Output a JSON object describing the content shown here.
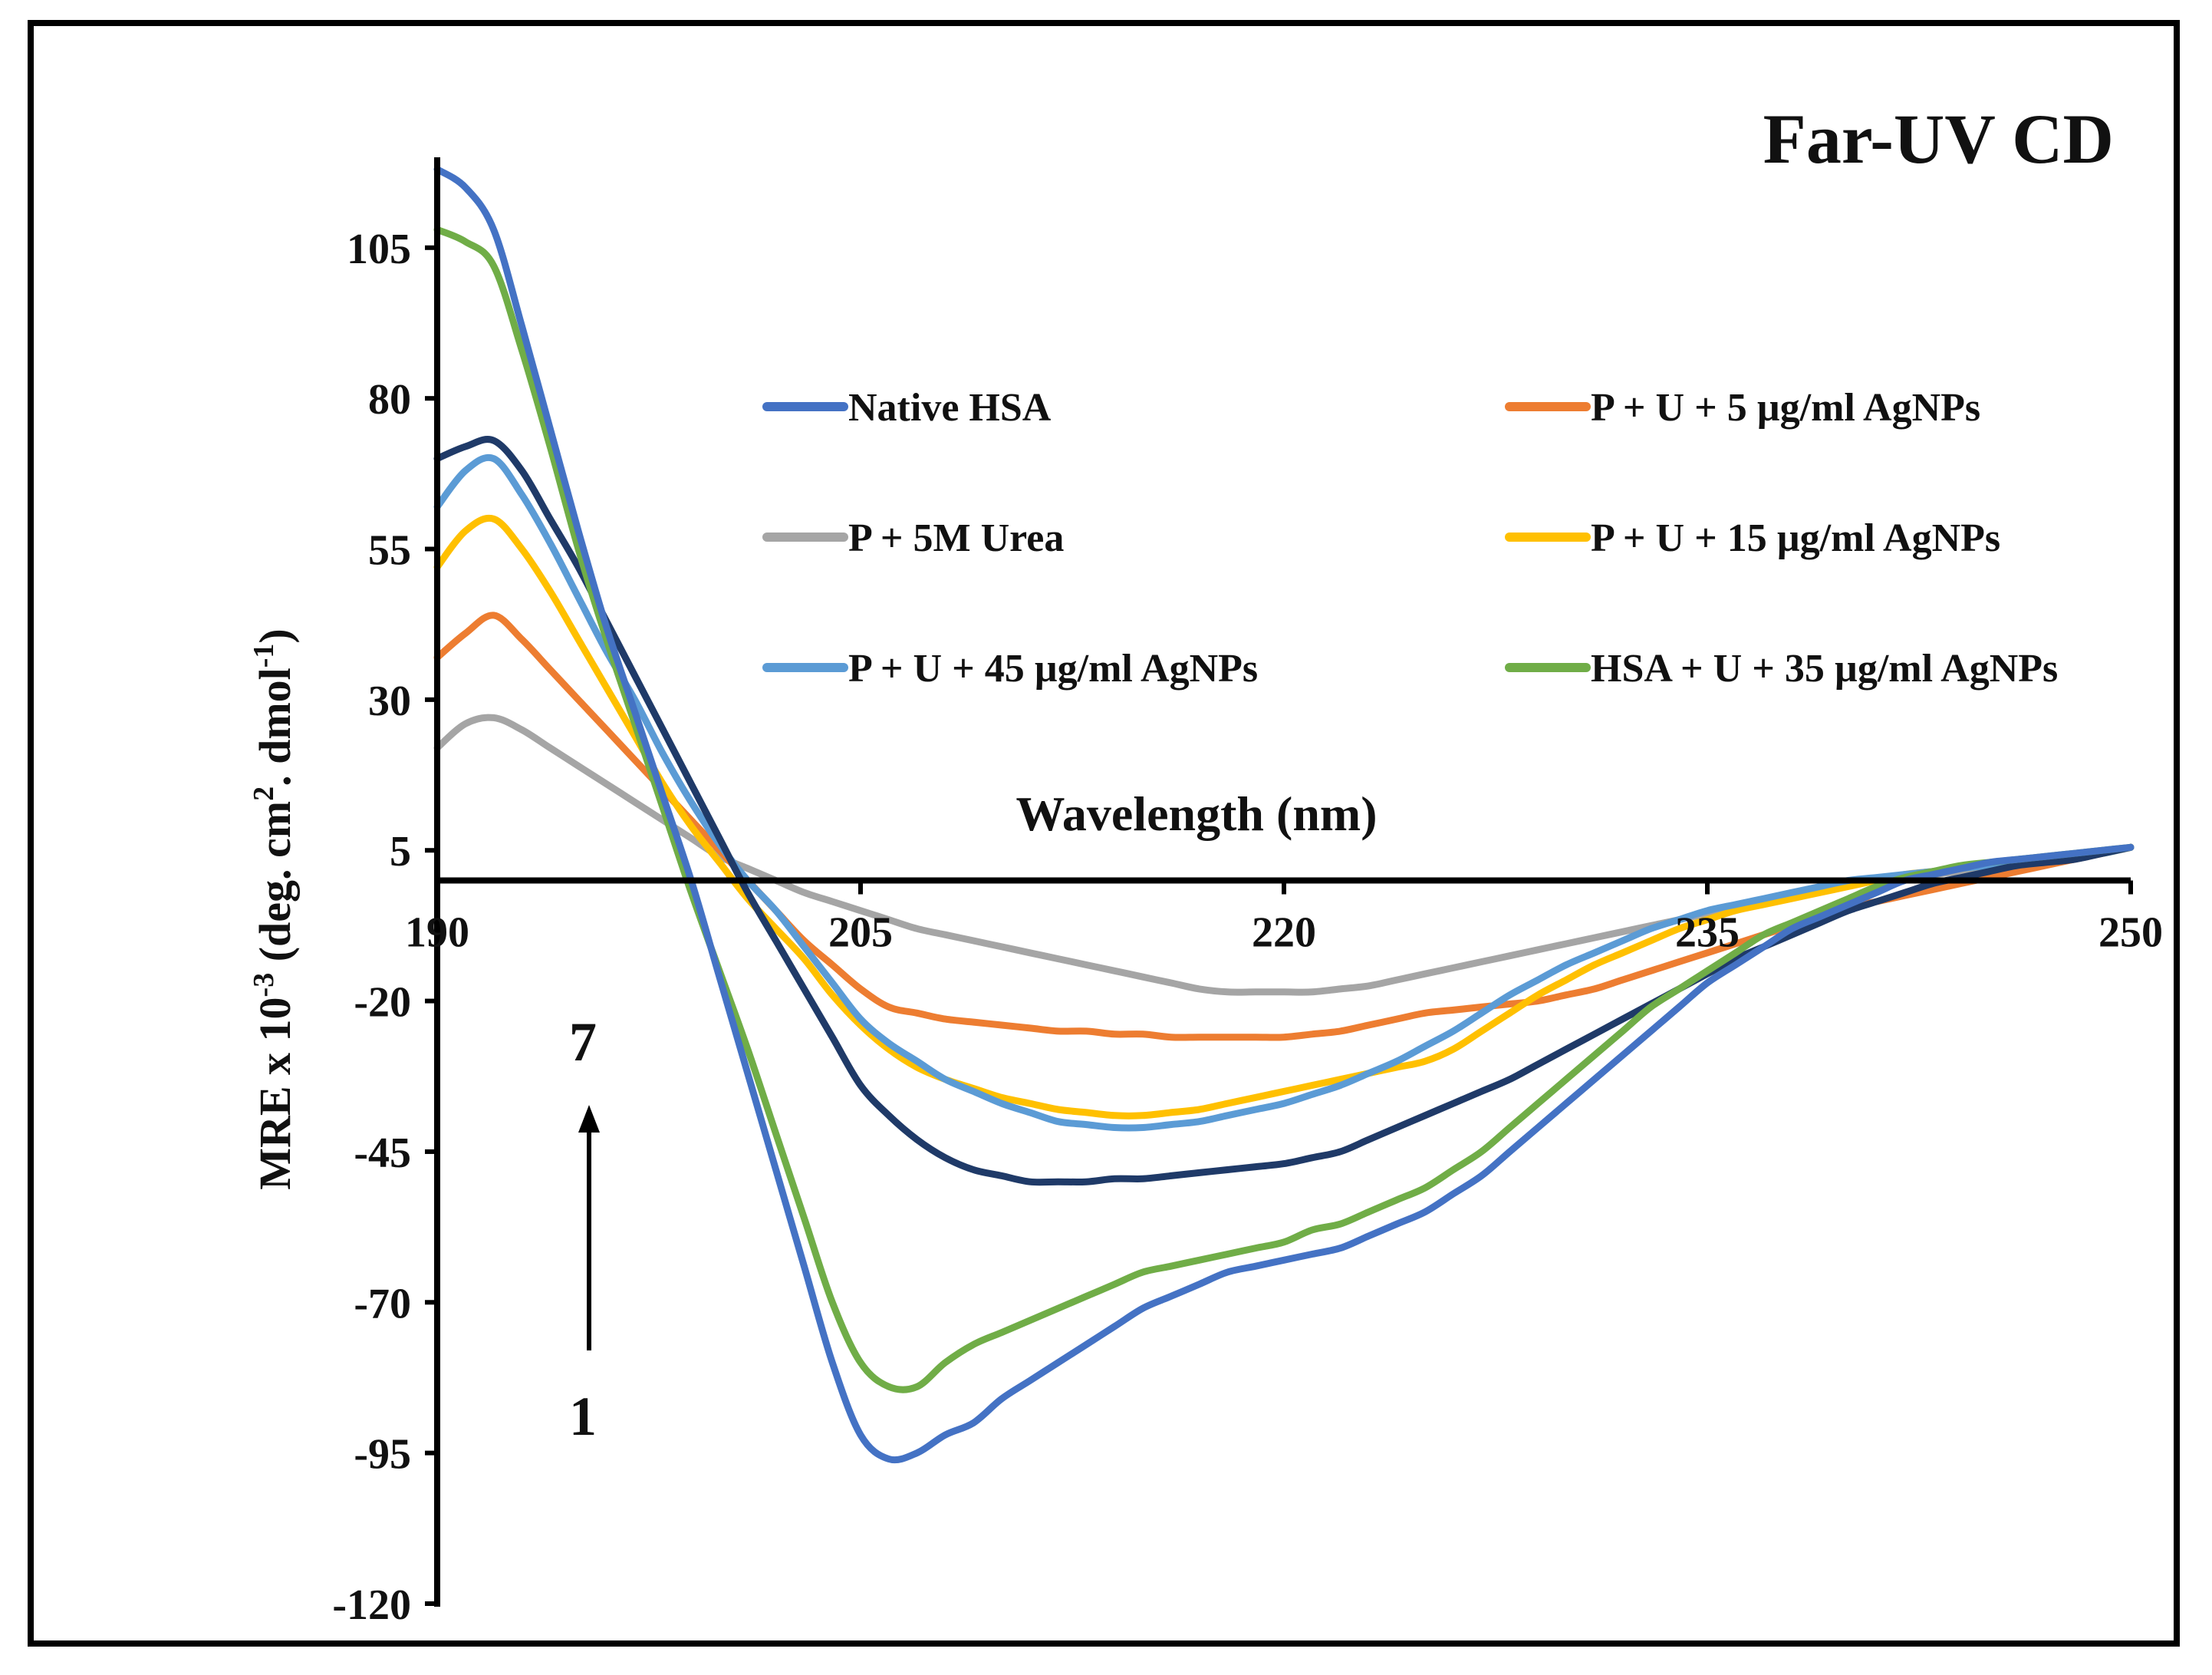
{
  "chart_data": {
    "type": "line",
    "title": "Far-UV CD",
    "xlabel": "Wavelength (nm)",
    "ylabel": "MRE x 10",
    "ylabel_exp": "-3",
    "ylabel_mid": " (deg. cm",
    "ylabel_exp2": "2",
    "ylabel_tail": ". dmol",
    "ylabel_exp3": "-1",
    "ylabel_close": ")",
    "xlim": [
      190,
      250
    ],
    "ylim": [
      -120,
      120
    ],
    "x_ticks": [
      "190",
      "205",
      "220",
      "235",
      "250"
    ],
    "y_ticks": [
      "105",
      "80",
      "55",
      "30",
      "5",
      "-20",
      "-45",
      "-70",
      "-95",
      "-120"
    ],
    "annotation_top": "7",
    "annotation_bottom": "1",
    "x": [
      190,
      191,
      192,
      193,
      194,
      195,
      196,
      197,
      198,
      199,
      200,
      201,
      202,
      203,
      204,
      205,
      206,
      207,
      208,
      209,
      210,
      211,
      212,
      213,
      214,
      215,
      216,
      217,
      218,
      219,
      220,
      221,
      222,
      223,
      224,
      225,
      226,
      227,
      228,
      229,
      230,
      231,
      232,
      233,
      234,
      235,
      236,
      237,
      238,
      239,
      240,
      241,
      242,
      243,
      244,
      245,
      246,
      247,
      248,
      249,
      250
    ],
    "series": [
      {
        "name": "Native HSA",
        "color": "#4472C4",
        "values": [
          118,
          115,
          108,
          92,
          75,
          58,
          42,
          28,
          14,
          0,
          -16,
          -32,
          -48,
          -64,
          -80,
          -92,
          -96,
          -95,
          -92,
          -90,
          -86,
          -83,
          -80,
          -77,
          -74,
          -71,
          -69,
          -67,
          -65,
          -64,
          -63,
          -62,
          -61,
          -59,
          -57,
          -55,
          -52,
          -49,
          -45,
          -41,
          -37,
          -33,
          -29,
          -25,
          -21,
          -17,
          -14,
          -11,
          -8,
          -6,
          -4,
          -2,
          0,
          1,
          2,
          3,
          3.5,
          4,
          4.5,
          5,
          5.5
        ]
      },
      {
        "name": "P + U + 5 µg/ml AgNPs",
        "color": "#ED7D31",
        "values": [
          37,
          41,
          44,
          40,
          35,
          30,
          25,
          20,
          15,
          10,
          5,
          0,
          -5,
          -10,
          -14,
          -18,
          -21,
          -22,
          -23,
          -23.5,
          -24,
          -24.5,
          -25,
          -25,
          -25.5,
          -25.5,
          -26,
          -26,
          -26,
          -26,
          -26,
          -25.5,
          -25,
          -24,
          -23,
          -22,
          -21.5,
          -21,
          -20.5,
          -20,
          -19,
          -18,
          -16.5,
          -15,
          -13.5,
          -12,
          -10.5,
          -9,
          -7.5,
          -6,
          -4.5,
          -3.5,
          -2.5,
          -1.5,
          -0.5,
          0.5,
          1.5,
          2.5,
          3.5,
          4.5,
          5.5
        ]
      },
      {
        "name": "P + 5M Urea",
        "color": "#A5A5A5",
        "values": [
          22,
          26,
          27,
          25,
          22,
          19,
          16,
          13,
          10,
          7,
          4,
          2,
          0,
          -2,
          -3.5,
          -5,
          -6.5,
          -8,
          -9,
          -10,
          -11,
          -12,
          -13,
          -14,
          -15,
          -16,
          -17,
          -18,
          -18.5,
          -18.5,
          -18.5,
          -18.5,
          -18,
          -17.5,
          -16.5,
          -15.5,
          -14.5,
          -13.5,
          -12.5,
          -11.5,
          -10.5,
          -9.5,
          -8.5,
          -7.5,
          -6.5,
          -5.5,
          -4.5,
          -3.5,
          -2.5,
          -1.5,
          -0.5,
          0,
          0.5,
          1,
          1.5,
          2,
          2.5,
          3,
          3.5,
          4.5,
          5.5
        ]
      },
      {
        "name": "P + U + 15 µg/ml AgNPs",
        "color": "#FFC000",
        "values": [
          52,
          58,
          60,
          55,
          48,
          40,
          32,
          24,
          16,
          9,
          3,
          -3,
          -8,
          -13,
          -19,
          -24,
          -28,
          -31,
          -33,
          -34.5,
          -36,
          -37,
          -38,
          -38.5,
          -39,
          -39,
          -38.5,
          -38,
          -37,
          -36,
          -35,
          -34,
          -33,
          -32,
          -31,
          -30,
          -28,
          -25,
          -22,
          -19,
          -16.5,
          -14,
          -12,
          -10,
          -8,
          -6.5,
          -5,
          -4,
          -3,
          -2,
          -1,
          0,
          1,
          1.5,
          2,
          2.5,
          3,
          3.5,
          4,
          4.5,
          5.5
        ]
      },
      {
        "name": "P + U + 45 µg/ml AgNPs",
        "color": "#5B9BD5",
        "values": [
          62,
          68,
          70,
          64,
          56,
          47,
          38,
          30,
          21,
          13,
          6,
          0,
          -5,
          -11,
          -17,
          -23,
          -27,
          -30,
          -33,
          -35,
          -37,
          -38.5,
          -40,
          -40.5,
          -41,
          -41,
          -40.5,
          -40,
          -39,
          -38,
          -37,
          -35.5,
          -34,
          -32,
          -30,
          -27.5,
          -25,
          -22,
          -19,
          -16.5,
          -14,
          -12,
          -10,
          -8,
          -6.5,
          -5,
          -4,
          -3,
          -2,
          -1,
          0,
          0.5,
          1,
          1.5,
          2,
          2.5,
          3,
          3.5,
          4,
          4.5,
          5.5
        ]
      },
      {
        "name": "HSA + U + 35 µg/ml AgNPs",
        "color": "#70AD47",
        "values": [
          108,
          106,
          102,
          88,
          72,
          55,
          40,
          26,
          12,
          -2,
          -15,
          -28,
          -42,
          -56,
          -70,
          -80,
          -84,
          -84,
          -80,
          -77,
          -75,
          -73,
          -71,
          -69,
          -67,
          -65,
          -64,
          -63,
          -62,
          -61,
          -60,
          -58,
          -57,
          -55,
          -53,
          -51,
          -48,
          -45,
          -41,
          -37,
          -33,
          -29,
          -25,
          -21,
          -18,
          -15,
          -12,
          -9,
          -7,
          -5,
          -3,
          -1,
          0.5,
          1.5,
          2.5,
          3,
          3.5,
          4,
          4.5,
          5,
          5.5
        ]
      },
      {
        "name": "",
        "color": "#1F3A68",
        "values": [
          70,
          72,
          73,
          68,
          60,
          52,
          43,
          34,
          25,
          16,
          7,
          -2,
          -10,
          -18,
          -26,
          -34,
          -39,
          -43,
          -46,
          -48,
          -49,
          -50,
          -50,
          -50,
          -49.5,
          -49.5,
          -49,
          -48.5,
          -48,
          -47.5,
          -47,
          -46,
          -45,
          -43,
          -41,
          -39,
          -37,
          -35,
          -33,
          -30.5,
          -28,
          -25.5,
          -23,
          -20.5,
          -18,
          -15.5,
          -13,
          -11,
          -9,
          -7,
          -5,
          -3.5,
          -2,
          -0.5,
          0.5,
          1.5,
          2.5,
          3,
          3.5,
          4.5,
          5.5
        ]
      }
    ],
    "legend": [
      {
        "label": "Native HSA",
        "color": "#4472C4"
      },
      {
        "label": "P + U + 5 µg/ml AgNPs",
        "color": "#ED7D31"
      },
      {
        "label": "P + 5M Urea",
        "color": "#A5A5A5"
      },
      {
        "label": "P + U + 15 µg/ml AgNPs",
        "color": "#FFC000"
      },
      {
        "label": "P + U + 45 µg/ml AgNPs",
        "color": "#5B9BD5"
      },
      {
        "label": "HSA + U + 35 µg/ml AgNPs",
        "color": "#70AD47"
      }
    ],
    "grid": false
  }
}
